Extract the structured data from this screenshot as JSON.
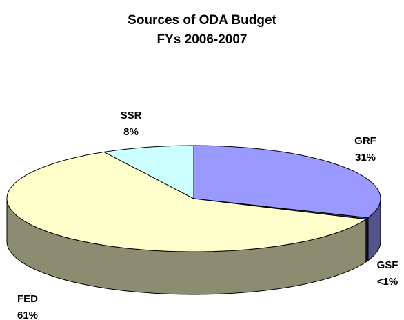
{
  "chart_data": {
    "type": "pie3d",
    "title": "Sources of ODA Budget",
    "subtitle": "FYs 2006-2007",
    "categories": [
      "GRF",
      "GSF",
      "FED",
      "SSR"
    ],
    "values": [
      31,
      0.5,
      61,
      8
    ],
    "value_labels": [
      "31%",
      "<1%",
      "61%",
      "8%"
    ],
    "colors": [
      "#9999ff",
      "#333366",
      "#ffffcc",
      "#ccffff"
    ]
  }
}
